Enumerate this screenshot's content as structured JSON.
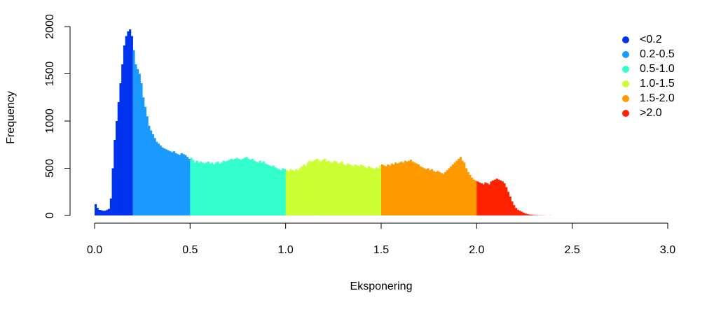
{
  "chart_data": {
    "type": "bar",
    "title": "",
    "xlabel": "Eksponering",
    "ylabel": "Frequency",
    "xlim": [
      0,
      3
    ],
    "ylim": [
      0,
      2000
    ],
    "x_ticks": [
      "0.0",
      "0.5",
      "1.0",
      "1.5",
      "2.0",
      "2.5",
      "3.0"
    ],
    "y_ticks": [
      "0",
      "500",
      "1000",
      "1500",
      "2000"
    ],
    "grid": false,
    "legend_position": "top-right",
    "bin_width": 0.01,
    "bin_start": 0.0,
    "groups": [
      {
        "name": "<0.2",
        "color": "#0033ee",
        "range": [
          0.0,
          0.2
        ]
      },
      {
        "name": "0.2-0.5",
        "color": "#1a99ff",
        "range": [
          0.2,
          0.5
        ]
      },
      {
        "name": "0.5-1.0",
        "color": "#33ffcc",
        "range": [
          0.5,
          1.0
        ]
      },
      {
        "name": "1.0-1.5",
        "color": "#ccff33",
        "range": [
          1.0,
          1.5
        ]
      },
      {
        "name": "1.5-2.0",
        "color": "#ff9900",
        "range": [
          1.5,
          2.0
        ]
      },
      {
        "name": ">2.0",
        "color": "#ff2200",
        "range": [
          2.0,
          3.0
        ]
      }
    ],
    "values": [
      120,
      80,
      60,
      55,
      50,
      50,
      60,
      70,
      180,
      500,
      800,
      1000,
      1200,
      1400,
      1600,
      1800,
      1900,
      1950,
      1970,
      1900,
      1750,
      1600,
      1550,
      1500,
      1400,
      1250,
      1150,
      1050,
      950,
      900,
      860,
      820,
      780,
      760,
      740,
      720,
      710,
      700,
      690,
      680,
      670,
      680,
      660,
      650,
      640,
      660,
      650,
      640,
      620,
      600,
      610,
      590,
      560,
      580,
      560,
      570,
      560,
      550,
      560,
      570,
      550,
      560,
      540,
      560,
      570,
      550,
      560,
      580,
      570,
      580,
      590,
      600,
      590,
      600,
      610,
      600,
      590,
      600,
      610,
      620,
      600,
      590,
      600,
      580,
      570,
      560,
      580,
      560,
      570,
      550,
      540,
      530,
      520,
      530,
      510,
      500,
      490,
      480,
      500,
      490,
      480,
      470,
      490,
      480,
      470,
      490,
      480,
      500,
      520,
      540,
      520,
      560,
      580,
      570,
      580,
      590,
      600,
      580,
      570,
      590,
      600,
      570,
      580,
      560,
      560,
      580,
      570,
      550,
      560,
      570,
      540,
      530,
      550,
      540,
      530,
      520,
      540,
      530,
      520,
      540,
      530,
      510,
      500,
      520,
      510,
      500,
      490,
      510,
      500,
      530,
      540,
      530,
      520,
      540,
      530,
      550,
      540,
      560,
      550,
      560,
      570,
      560,
      580,
      570,
      580,
      590,
      570,
      560,
      550,
      540,
      520,
      510,
      500,
      490,
      500,
      480,
      490,
      470,
      460,
      470,
      460,
      450,
      440,
      460,
      480,
      500,
      520,
      540,
      560,
      580,
      600,
      620,
      580,
      560,
      500,
      460,
      430,
      400,
      380,
      370,
      360,
      350,
      340,
      330,
      350,
      340,
      330,
      360,
      370,
      380,
      390,
      380,
      370,
      360,
      340,
      300,
      250,
      200,
      150,
      110,
      80,
      60,
      50,
      40,
      30,
      20,
      15,
      10,
      8,
      5,
      4,
      3,
      2,
      2,
      1,
      1,
      0,
      0,
      1,
      0,
      0,
      0,
      0,
      0,
      0,
      0,
      0,
      0,
      0,
      0,
      0,
      0,
      0,
      0,
      0,
      0,
      0,
      0,
      0,
      0,
      0,
      0,
      0,
      0,
      0,
      0,
      0,
      0,
      0,
      0,
      0,
      0,
      0,
      0,
      0,
      0,
      0,
      0,
      0,
      0,
      0,
      0,
      0,
      0,
      0,
      0,
      0,
      0,
      0,
      0,
      0,
      0,
      0,
      0,
      0,
      0,
      0,
      0,
      0,
      0
    ]
  }
}
